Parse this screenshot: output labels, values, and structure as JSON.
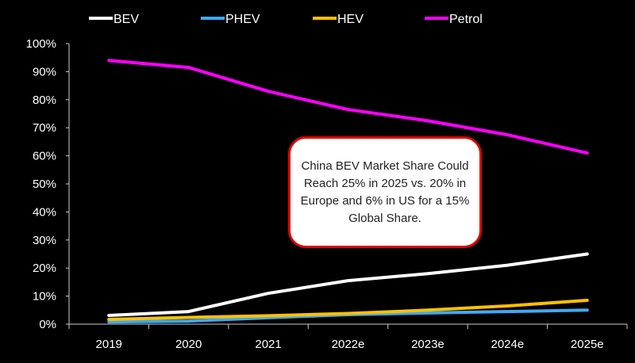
{
  "chart_data": {
    "type": "line",
    "title": "",
    "xlabel": "",
    "ylabel": "",
    "categories": [
      "2019",
      "2020",
      "2021",
      "2022e",
      "2023e",
      "2024e",
      "2025e"
    ],
    "ylim": [
      0,
      100
    ],
    "yticks": [
      "0%",
      "10%",
      "20%",
      "30%",
      "40%",
      "50%",
      "60%",
      "70%",
      "80%",
      "90%",
      "100%"
    ],
    "legend_position": "top",
    "grid": false,
    "series": [
      {
        "name": "BEV",
        "color": "#ffffff",
        "values": [
          3.1,
          4.5,
          11,
          15.5,
          18,
          21,
          25
        ]
      },
      {
        "name": "PHEV",
        "color": "#3fa9f5",
        "values": [
          0.8,
          1.1,
          2.3,
          3.4,
          4,
          4.5,
          5
        ]
      },
      {
        "name": "HEV",
        "color": "#ffc000",
        "values": [
          1.7,
          2.4,
          3,
          3.8,
          5,
          6.5,
          8.5
        ]
      },
      {
        "name": "Petrol",
        "color": "#ff00ff",
        "values": [
          94,
          91.5,
          83,
          76.5,
          72.5,
          67.5,
          61
        ]
      }
    ],
    "annotation": "China BEV Market Share Could Reach 25% in 2025 vs. 20% in Europe and 6% in US for a 15% Global Share."
  }
}
